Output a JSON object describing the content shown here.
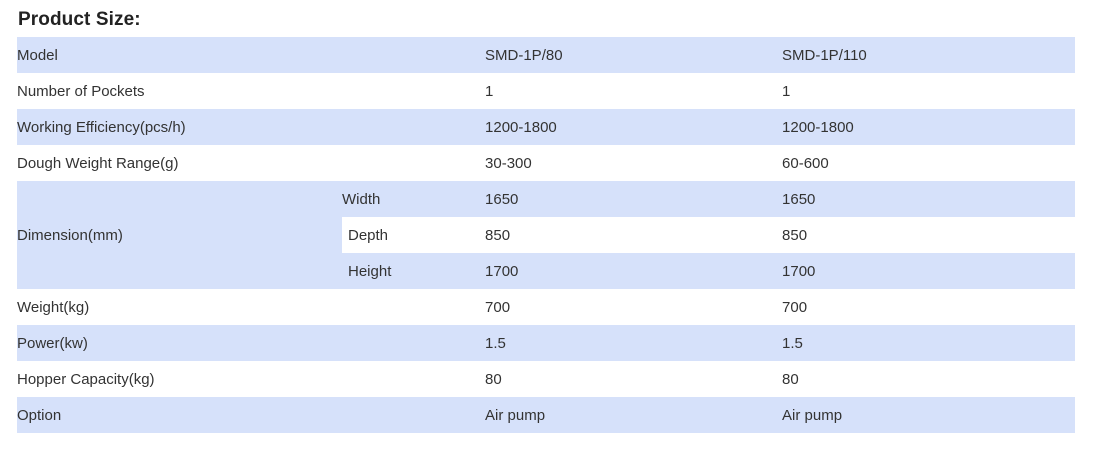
{
  "title": "Product Size:",
  "rows": [
    {
      "label": "Model",
      "v1": "SMD-1P/80",
      "v2": "SMD-1P/110"
    },
    {
      "label": "Number of Pockets",
      "v1": "1",
      "v2": "1"
    },
    {
      "label": "Working Efficiency(pcs/h)",
      "v1": "1200-1800",
      "v2": "1200-1800"
    },
    {
      "label": "Dough Weight Range(g)",
      "v1": "30-300",
      "v2": "60-600"
    }
  ],
  "dimension": {
    "label": "Dimension(mm)",
    "sub": [
      {
        "name": "Width",
        "v1": "1650",
        "v2": "1650"
      },
      {
        "name": "Depth",
        "v1": "850",
        "v2": "850"
      },
      {
        "name": "Height",
        "v1": "1700",
        "v2": "1700"
      }
    ]
  },
  "rows_after": [
    {
      "label": "Weight(kg)",
      "v1": "700",
      "v2": "700"
    },
    {
      "label": "Power(kw)",
      "v1": "1.5",
      "v2": "1.5"
    },
    {
      "label": "Hopper Capacity(kg)",
      "v1": "80",
      "v2": "80"
    },
    {
      "label": "Option",
      "v1": "Air pump",
      "v2": "Air pump"
    }
  ],
  "colors": {
    "shade": "#d6e1fa",
    "plain": "#ffffff"
  }
}
